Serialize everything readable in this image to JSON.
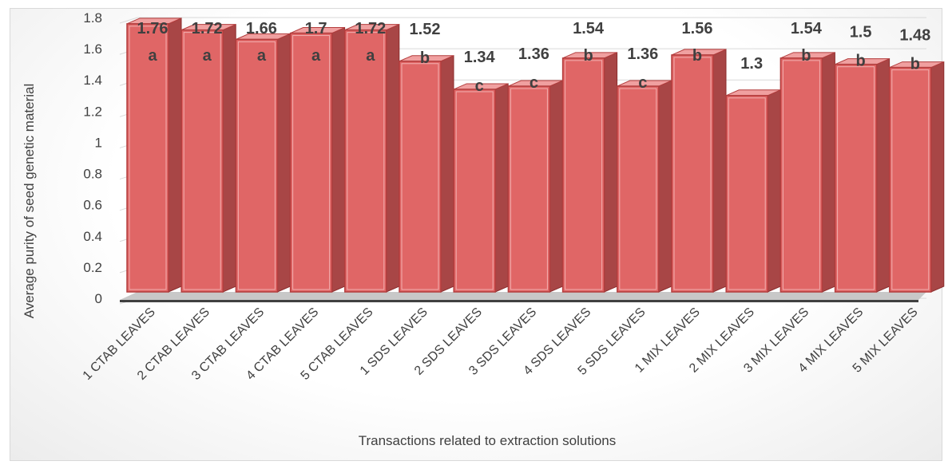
{
  "chart_data": {
    "type": "bar",
    "title": "",
    "xlabel": "Transactions related to extraction solutions",
    "ylabel": "Average purity of seed genetic material",
    "ylim": [
      0,
      1.8
    ],
    "yticks": [
      0,
      0.2,
      0.4,
      0.6,
      0.8,
      1,
      1.2,
      1.4,
      1.6,
      1.8
    ],
    "grid": true,
    "legend": "none",
    "categories": [
      "1 CTAB LEAVES",
      "2 CTAB LEAVES",
      "3 CTAB LEAVES",
      "4 CTAB LEAVES",
      "5 CTAB LEAVES",
      "1 SDS LEAVES",
      "2 SDS LEAVES",
      "3 SDS LEAVES",
      "4 SDS LEAVES",
      "5 SDS LEAVES",
      "1 MIX LEAVES",
      "2 MIX LEAVES",
      "3 MIX LEAVES",
      "4 MIX LEAVES",
      "5 MIX LEAVES"
    ],
    "values": [
      1.76,
      1.72,
      1.66,
      1.7,
      1.72,
      1.52,
      1.34,
      1.36,
      1.54,
      1.36,
      1.56,
      1.3,
      1.54,
      1.5,
      1.48
    ],
    "value_labels": [
      "1.76",
      "1.72",
      "1.66",
      "1.7",
      "1.72",
      "1.52",
      "1.34",
      "1.36",
      "1.54",
      "1.36",
      "1.56",
      "1.3",
      "1.54",
      "1.5",
      "1.48"
    ],
    "group_letters": [
      "a",
      "a",
      "a",
      "a",
      "a",
      "b",
      "c",
      "c",
      "b",
      "c",
      "b",
      "",
      "b",
      "b",
      "b"
    ],
    "bar_color": "#e06666"
  }
}
